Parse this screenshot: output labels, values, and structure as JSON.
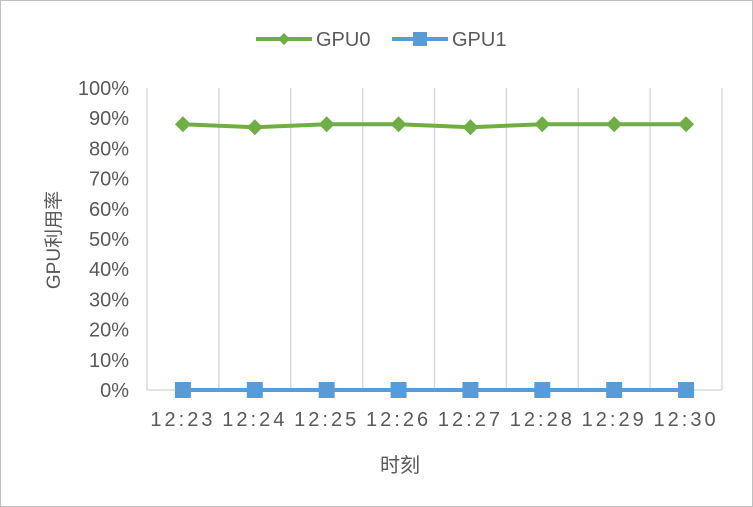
{
  "chart_data": {
    "type": "line",
    "title": "",
    "xlabel": "时刻",
    "ylabel": "GPU利用率",
    "categories": [
      "12:23",
      "12:24",
      "12:25",
      "12:26",
      "12:27",
      "12:28",
      "12:29",
      "12:30"
    ],
    "series": [
      {
        "name": "GPU0",
        "values": [
          88,
          87,
          88,
          88,
          87,
          88,
          88,
          88
        ],
        "color": "#70ad47",
        "marker": "diamond"
      },
      {
        "name": "GPU1",
        "values": [
          0,
          0,
          0,
          0,
          0,
          0,
          0,
          0
        ],
        "color": "#5b9bd5",
        "marker": "square"
      }
    ],
    "ylim": [
      0,
      100
    ],
    "yticks": [
      "0%",
      "10%",
      "20%",
      "30%",
      "40%",
      "50%",
      "60%",
      "70%",
      "80%",
      "90%",
      "100%"
    ],
    "grid": "vertical",
    "legend": "top"
  }
}
